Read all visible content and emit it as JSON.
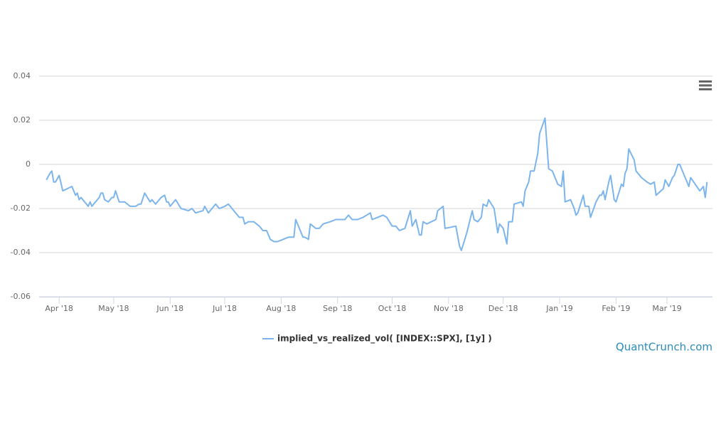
{
  "chart_data": {
    "type": "line",
    "x": [
      -7,
      -5,
      -4,
      -3,
      -2,
      0,
      2,
      7,
      9,
      10,
      11,
      12,
      15,
      16,
      17,
      18,
      22,
      23,
      24,
      25,
      27,
      29,
      30,
      31,
      33,
      36,
      39,
      42,
      44,
      45,
      47,
      50,
      51,
      53,
      56,
      58,
      59,
      60,
      61,
      64,
      67,
      71,
      73,
      75,
      79,
      80,
      82,
      84,
      86,
      88,
      91,
      93,
      95,
      99,
      101,
      102,
      104,
      107,
      110,
      112,
      114,
      116,
      118,
      120,
      123,
      126,
      129,
      130,
      134,
      135,
      137,
      138,
      141,
      143,
      145,
      149,
      152,
      155,
      157,
      159,
      161,
      164,
      167,
      169,
      171,
      172,
      175,
      178,
      180,
      183,
      185,
      187,
      190,
      193,
      194,
      196,
      198,
      199,
      200,
      202,
      207,
      208,
      211,
      212,
      218,
      220,
      221,
      224,
      227,
      228,
      230,
      232,
      233,
      235,
      236,
      239,
      241,
      242,
      244,
      246,
      247,
      249,
      250,
      254,
      255,
      256,
      258,
      259,
      261,
      262,
      263,
      264,
      267,
      269,
      271,
      274,
      276,
      277,
      278,
      281,
      283,
      284,
      285,
      288,
      289,
      291,
      292,
      295,
      297,
      298,
      299,
      300,
      302,
      303,
      305,
      306,
      309,
      310,
      311,
      312,
      313,
      316,
      317,
      320,
      323,
      325,
      327,
      328,
      332,
      333,
      335,
      337,
      338,
      340,
      341,
      344,
      345,
      346,
      347,
      352,
      354,
      355,
      356
    ],
    "series": [
      {
        "name": "implied_vs_realized_vol( [INDEX::SPX], [1y] )",
        "color": "#7cb5ec",
        "values": [
          -0.007,
          -0.004,
          -0.003,
          -0.008,
          -0.008,
          -0.005,
          -0.012,
          -0.01,
          -0.014,
          -0.013,
          -0.016,
          -0.015,
          -0.018,
          -0.019,
          -0.017,
          -0.019,
          -0.015,
          -0.013,
          -0.013,
          -0.016,
          -0.017,
          -0.015,
          -0.015,
          -0.012,
          -0.017,
          -0.017,
          -0.019,
          -0.019,
          -0.018,
          -0.018,
          -0.013,
          -0.017,
          -0.016,
          -0.018,
          -0.015,
          -0.014,
          -0.017,
          -0.017,
          -0.019,
          -0.016,
          -0.02,
          -0.021,
          -0.02,
          -0.022,
          -0.021,
          -0.019,
          -0.022,
          -0.02,
          -0.018,
          -0.02,
          -0.019,
          -0.018,
          -0.02,
          -0.024,
          -0.024,
          -0.027,
          -0.026,
          -0.026,
          -0.028,
          -0.03,
          -0.03,
          -0.034,
          -0.035,
          -0.035,
          -0.034,
          -0.033,
          -0.033,
          -0.025,
          -0.033,
          -0.033,
          -0.034,
          -0.027,
          -0.029,
          -0.029,
          -0.027,
          -0.026,
          -0.025,
          -0.025,
          -0.025,
          -0.023,
          -0.025,
          -0.025,
          -0.024,
          -0.023,
          -0.022,
          -0.025,
          -0.024,
          -0.023,
          -0.024,
          -0.028,
          -0.028,
          -0.03,
          -0.029,
          -0.021,
          -0.028,
          -0.025,
          -0.032,
          -0.032,
          -0.026,
          -0.027,
          -0.025,
          -0.021,
          -0.019,
          -0.029,
          -0.028,
          -0.037,
          -0.039,
          -0.031,
          -0.021,
          -0.025,
          -0.026,
          -0.024,
          -0.018,
          -0.019,
          -0.016,
          -0.02,
          -0.031,
          -0.027,
          -0.029,
          -0.036,
          -0.026,
          -0.026,
          -0.018,
          -0.017,
          -0.019,
          -0.012,
          -0.008,
          -0.003,
          -0.003,
          0.001,
          0.005,
          0.014,
          0.021,
          -0.002,
          -0.003,
          -0.009,
          -0.01,
          -0.003,
          -0.017,
          -0.016,
          -0.02,
          -0.023,
          -0.022,
          -0.014,
          -0.019,
          -0.019,
          -0.024,
          -0.017,
          -0.014,
          -0.014,
          -0.012,
          -0.016,
          -0.008,
          -0.005,
          -0.016,
          -0.017,
          -0.009,
          -0.01,
          -0.004,
          -0.002,
          0.007,
          0.002,
          -0.003,
          -0.006,
          -0.008,
          -0.009,
          -0.008,
          -0.014,
          -0.011,
          -0.007,
          -0.01,
          -0.006,
          -0.005,
          0.0,
          0.0,
          -0.006,
          -0.008,
          -0.01,
          -0.006,
          -0.012,
          -0.01,
          -0.015,
          -0.008
        ]
      }
    ],
    "xlim": [
      -11,
      359
    ],
    "xticks": [
      {
        "value": 0,
        "label": "Apr '18"
      },
      {
        "value": 30,
        "label": "May '18"
      },
      {
        "value": 61,
        "label": "Jun '18"
      },
      {
        "value": 91,
        "label": "Jul '18"
      },
      {
        "value": 122,
        "label": "Aug '18"
      },
      {
        "value": 153,
        "label": "Sep '18"
      },
      {
        "value": 183,
        "label": "Oct '18"
      },
      {
        "value": 214,
        "label": "Nov '18"
      },
      {
        "value": 244,
        "label": "Dec '18"
      },
      {
        "value": 275,
        "label": "Jan '19"
      },
      {
        "value": 306,
        "label": "Feb '19"
      },
      {
        "value": 334,
        "label": "Mar '19"
      }
    ],
    "ylim": [
      -0.06,
      0.04
    ],
    "yticks": [
      -0.06,
      -0.04,
      -0.02,
      0,
      0.02,
      0.04
    ],
    "grid": true,
    "legend": "bottom",
    "credits": "QuantCrunch.com"
  }
}
